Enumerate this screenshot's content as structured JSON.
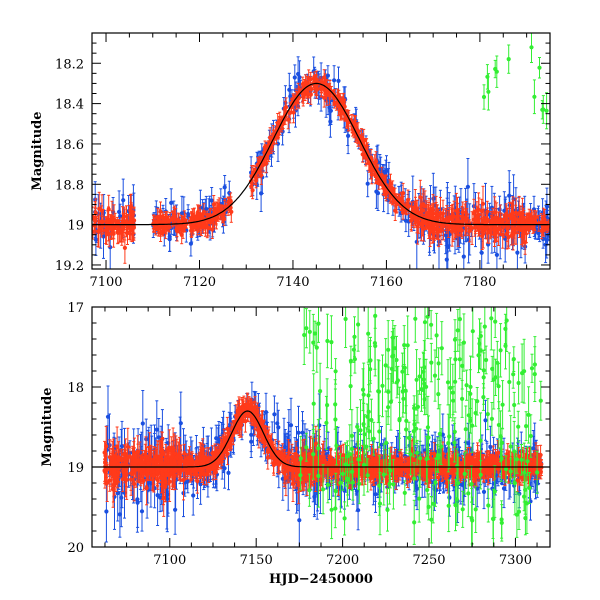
{
  "chart_data": [
    {
      "type": "scatter",
      "panel": "top",
      "xlabel": "",
      "ylabel": "Magnitude",
      "xlim": [
        7097,
        7195
      ],
      "ylim": [
        19.22,
        18.05
      ],
      "x_ticks": [
        7100,
        7120,
        7140,
        7160,
        7180
      ],
      "y_ticks": [
        18.2,
        18.4,
        18.6,
        18.8,
        19,
        19.2
      ],
      "grid": false,
      "series": [
        {
          "name": "blue",
          "color": "#1a4fe0",
          "marker": "dot-errorbar"
        },
        {
          "name": "red",
          "color": "#ff3a1a",
          "marker": "dot-errorbar"
        },
        {
          "name": "green",
          "color": "#33ee33",
          "marker": "dot-errorbar"
        },
        {
          "name": "model",
          "color": "#000000",
          "marker": "line"
        }
      ],
      "model_curve": {
        "baseline": 19.0,
        "peak_x": 7145,
        "peak_mag": 18.3,
        "width": 13
      }
    },
    {
      "type": "scatter",
      "panel": "bottom",
      "xlabel": "HJD−2450000",
      "ylabel": "Magnitude",
      "xlim": [
        7055,
        7320
      ],
      "ylim": [
        20,
        17
      ],
      "x_ticks": [
        7100,
        7150,
        7200,
        7250,
        7300
      ],
      "y_ticks": [
        17,
        18,
        19,
        20
      ],
      "grid": false,
      "series": [
        {
          "name": "blue",
          "color": "#1a4fe0",
          "marker": "dot-errorbar"
        },
        {
          "name": "red",
          "color": "#ff3a1a",
          "marker": "dot-errorbar"
        },
        {
          "name": "green",
          "color": "#33ee33",
          "marker": "dot-errorbar"
        },
        {
          "name": "model",
          "color": "#000000",
          "marker": "line"
        }
      ],
      "model_curve": {
        "baseline": 19.0,
        "peak_x": 7145,
        "peak_mag": 18.3,
        "width": 13
      }
    }
  ]
}
